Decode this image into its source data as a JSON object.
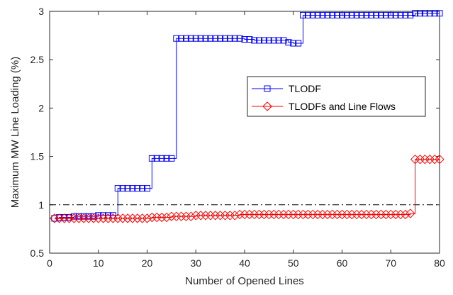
{
  "chart_data": {
    "type": "line",
    "xlabel": "Number of Opened Lines",
    "ylabel": "Maximum MW Line Loading (%)",
    "xlim": [
      0,
      80
    ],
    "ylim": [
      0.5,
      3
    ],
    "xticks": [
      0,
      10,
      20,
      30,
      40,
      50,
      60,
      70,
      80
    ],
    "yticks": [
      0.5,
      1,
      1.5,
      2,
      2.5,
      3
    ],
    "xtick_labels": [
      "0",
      "10",
      "20",
      "30",
      "40",
      "50",
      "60",
      "70",
      "80"
    ],
    "ytick_labels": [
      "0.5",
      "1",
      "1.5",
      "2",
      "2.5",
      "3"
    ],
    "grid": false,
    "legend_position": "center-right",
    "reference_line": {
      "y": 1.0,
      "style": "dash-dot",
      "color": "#000000"
    },
    "series": [
      {
        "name": "TLODF",
        "color": "#0000ff",
        "marker": "square",
        "x": [
          1,
          2,
          3,
          4,
          5,
          6,
          7,
          8,
          9,
          10,
          11,
          12,
          13,
          14,
          15,
          16,
          17,
          18,
          19,
          20,
          21,
          22,
          23,
          24,
          25,
          26,
          27,
          28,
          29,
          30,
          31,
          32,
          33,
          34,
          35,
          36,
          37,
          38,
          39,
          40,
          41,
          42,
          43,
          44,
          45,
          46,
          47,
          48,
          49,
          50,
          51,
          52,
          53,
          54,
          55,
          56,
          57,
          58,
          59,
          60,
          61,
          62,
          63,
          64,
          65,
          66,
          67,
          68,
          69,
          70,
          71,
          72,
          73,
          74,
          75,
          76,
          77,
          78,
          79,
          80
        ],
        "y": [
          0.86,
          0.87,
          0.87,
          0.87,
          0.88,
          0.88,
          0.88,
          0.88,
          0.88,
          0.89,
          0.89,
          0.89,
          0.89,
          1.17,
          1.17,
          1.17,
          1.17,
          1.17,
          1.17,
          1.17,
          1.48,
          1.48,
          1.48,
          1.48,
          1.48,
          2.72,
          2.72,
          2.72,
          2.72,
          2.72,
          2.72,
          2.72,
          2.72,
          2.72,
          2.72,
          2.72,
          2.72,
          2.72,
          2.72,
          2.71,
          2.71,
          2.7,
          2.7,
          2.7,
          2.7,
          2.7,
          2.7,
          2.7,
          2.68,
          2.67,
          2.67,
          2.96,
          2.96,
          2.96,
          2.96,
          2.96,
          2.96,
          2.96,
          2.96,
          2.96,
          2.96,
          2.96,
          2.96,
          2.96,
          2.96,
          2.96,
          2.96,
          2.96,
          2.96,
          2.96,
          2.96,
          2.96,
          2.96,
          2.96,
          2.98,
          2.98,
          2.98,
          2.98,
          2.98,
          2.98
        ]
      },
      {
        "name": "TLODFs and Line Flows",
        "color": "#ff0000",
        "marker": "diamond",
        "x": [
          1,
          2,
          3,
          4,
          5,
          6,
          7,
          8,
          9,
          10,
          11,
          12,
          13,
          14,
          15,
          16,
          17,
          18,
          19,
          20,
          21,
          22,
          23,
          24,
          25,
          26,
          27,
          28,
          29,
          30,
          31,
          32,
          33,
          34,
          35,
          36,
          37,
          38,
          39,
          40,
          41,
          42,
          43,
          44,
          45,
          46,
          47,
          48,
          49,
          50,
          51,
          52,
          53,
          54,
          55,
          56,
          57,
          58,
          59,
          60,
          61,
          62,
          63,
          64,
          65,
          66,
          67,
          68,
          69,
          70,
          71,
          72,
          73,
          74,
          75,
          76,
          77,
          78,
          79,
          80
        ],
        "y": [
          0.86,
          0.86,
          0.86,
          0.86,
          0.86,
          0.86,
          0.86,
          0.86,
          0.86,
          0.86,
          0.86,
          0.86,
          0.86,
          0.86,
          0.86,
          0.86,
          0.86,
          0.86,
          0.86,
          0.86,
          0.87,
          0.87,
          0.87,
          0.87,
          0.88,
          0.88,
          0.88,
          0.88,
          0.88,
          0.89,
          0.89,
          0.89,
          0.89,
          0.89,
          0.89,
          0.89,
          0.89,
          0.89,
          0.9,
          0.9,
          0.9,
          0.9,
          0.9,
          0.9,
          0.9,
          0.9,
          0.9,
          0.9,
          0.9,
          0.9,
          0.9,
          0.9,
          0.9,
          0.9,
          0.9,
          0.9,
          0.9,
          0.9,
          0.9,
          0.9,
          0.9,
          0.9,
          0.9,
          0.9,
          0.9,
          0.9,
          0.9,
          0.9,
          0.9,
          0.9,
          0.9,
          0.9,
          0.9,
          0.91,
          1.47,
          1.47,
          1.47,
          1.47,
          1.47,
          1.47
        ]
      }
    ]
  }
}
